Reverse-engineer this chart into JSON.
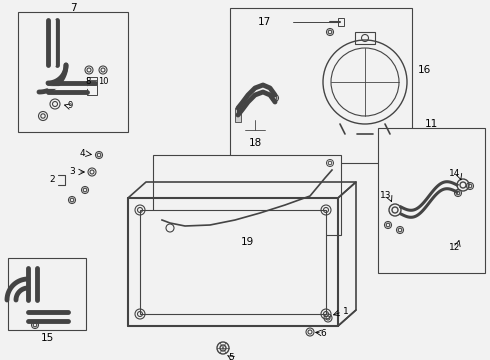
{
  "bg_color": "#f2f2f2",
  "line_color": "#444444",
  "fig_bg": "#f2f2f2"
}
